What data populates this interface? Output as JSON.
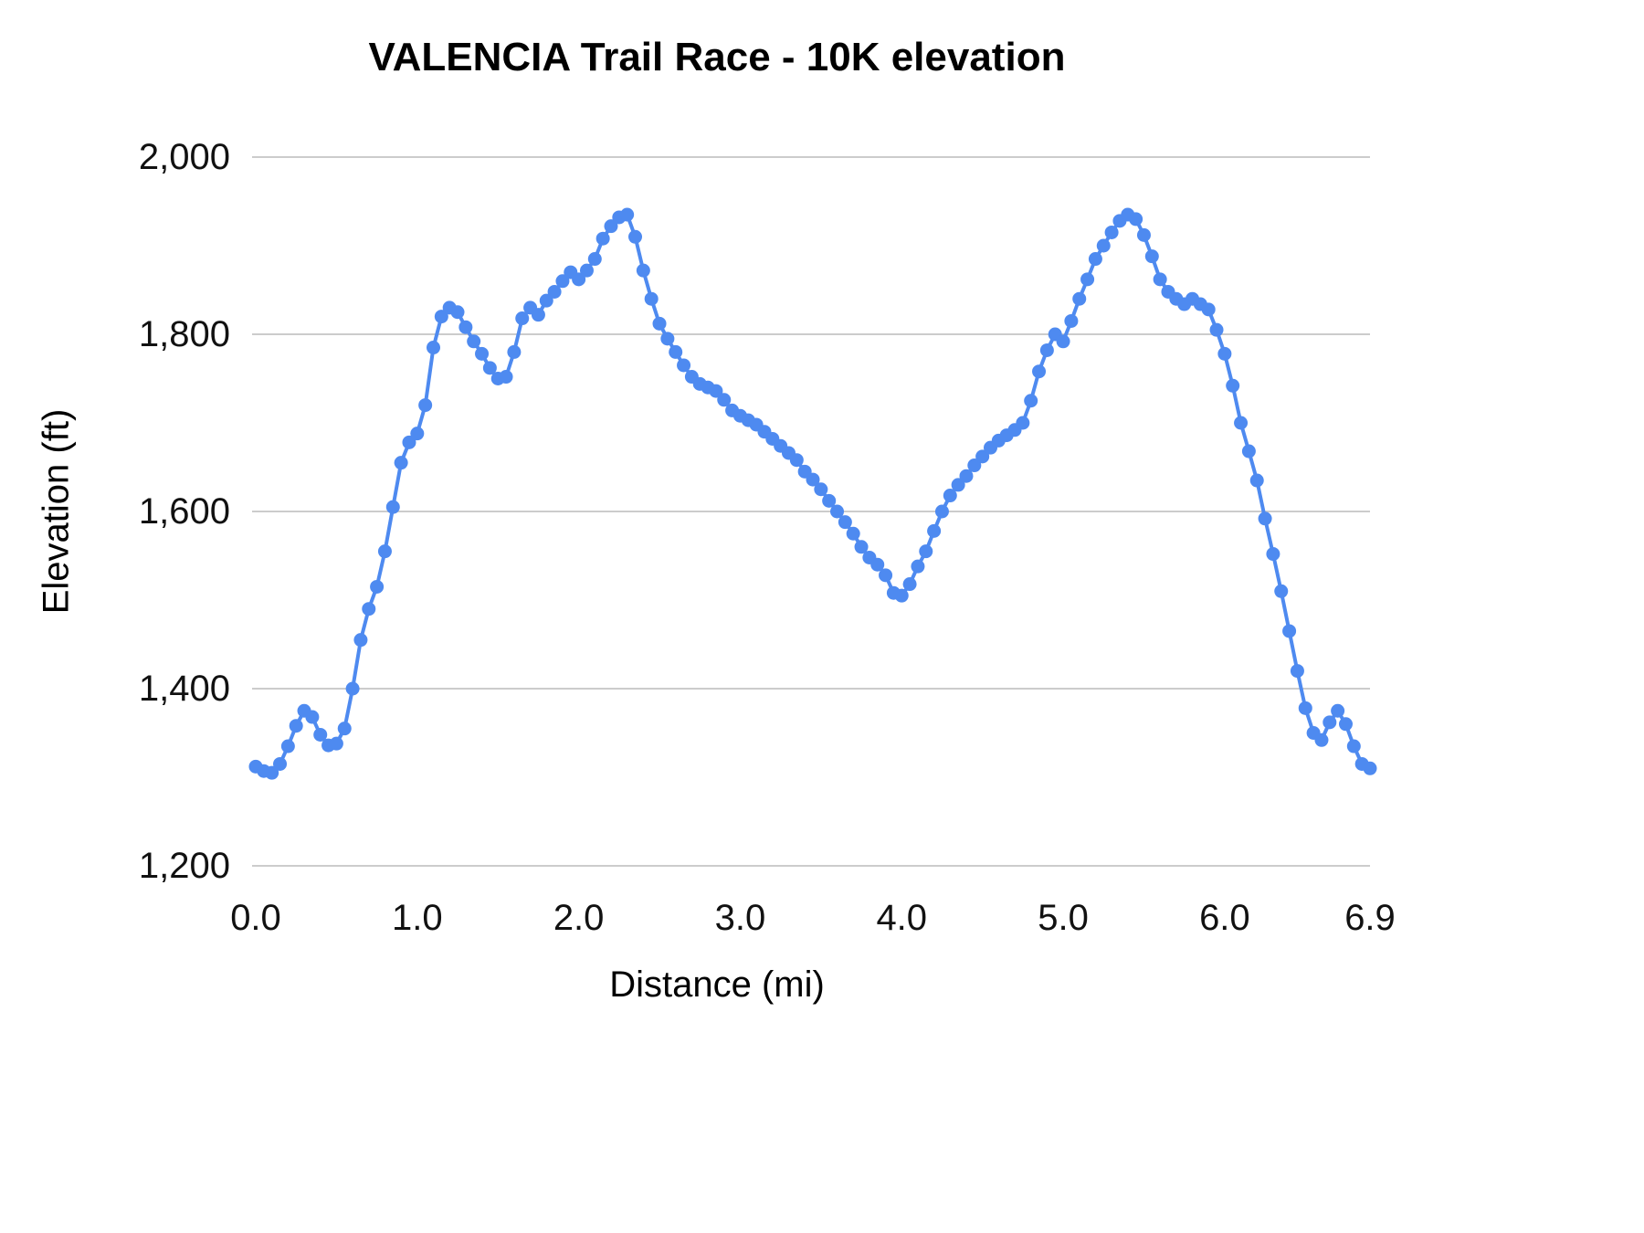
{
  "chart_data": {
    "type": "line",
    "title": "VALENCIA Trail Race - 10K elevation",
    "xlabel": "Distance (mi)",
    "ylabel": "Elevation (ft)",
    "xlim": [
      0,
      6.9
    ],
    "ylim": [
      1200,
      2000
    ],
    "grid": "horizontal",
    "legend": "none",
    "marker": "circle",
    "x_ticks": [
      "0.0",
      "1.0",
      "2.0",
      "3.0",
      "4.0",
      "5.0",
      "6.0",
      "6.9"
    ],
    "x_tick_values": [
      0,
      1,
      2,
      3,
      4,
      5,
      6,
      6.9
    ],
    "y_ticks": [
      "1,200",
      "1,400",
      "1,600",
      "1,800",
      "2,000"
    ],
    "y_tick_values": [
      1200,
      1400,
      1600,
      1800,
      2000
    ],
    "colors": {
      "series": "#4e8af0",
      "grid": "#cccccc",
      "tick_text": "#111111"
    },
    "series": [
      {
        "name": "elevation",
        "color": "#4e8af0",
        "x": [
          0,
          0.05,
          0.1,
          0.15,
          0.2,
          0.25,
          0.3,
          0.35,
          0.4,
          0.45,
          0.5,
          0.55,
          0.6,
          0.65,
          0.7,
          0.75,
          0.8,
          0.85,
          0.9,
          0.95,
          1,
          1.05,
          1.1,
          1.15,
          1.2,
          1.25,
          1.3,
          1.35,
          1.4,
          1.45,
          1.5,
          1.55,
          1.6,
          1.65,
          1.7,
          1.75,
          1.8,
          1.85,
          1.9,
          1.95,
          2,
          2.05,
          2.1,
          2.15,
          2.2,
          2.25,
          2.3,
          2.35,
          2.4,
          2.45,
          2.5,
          2.55,
          2.6,
          2.65,
          2.7,
          2.75,
          2.8,
          2.85,
          2.9,
          2.95,
          3,
          3.05,
          3.1,
          3.15,
          3.2,
          3.25,
          3.3,
          3.35,
          3.4,
          3.45,
          3.5,
          3.55,
          3.6,
          3.65,
          3.7,
          3.75,
          3.8,
          3.85,
          3.9,
          3.95,
          4,
          4.05,
          4.1,
          4.15,
          4.2,
          4.25,
          4.3,
          4.35,
          4.4,
          4.45,
          4.5,
          4.55,
          4.6,
          4.65,
          4.7,
          4.75,
          4.8,
          4.85,
          4.9,
          4.95,
          5,
          5.05,
          5.1,
          5.15,
          5.2,
          5.25,
          5.3,
          5.35,
          5.4,
          5.45,
          5.5,
          5.55,
          5.6,
          5.65,
          5.7,
          5.75,
          5.8,
          5.85,
          5.9,
          5.95,
          6,
          6.05,
          6.1,
          6.15,
          6.2,
          6.25,
          6.3,
          6.35,
          6.4,
          6.45,
          6.5,
          6.55,
          6.6,
          6.65,
          6.7,
          6.75,
          6.8,
          6.85,
          6.9
        ],
        "y": [
          1312,
          1307,
          1305,
          1315,
          1335,
          1358,
          1375,
          1368,
          1348,
          1336,
          1338,
          1355,
          1400,
          1455,
          1490,
          1515,
          1555,
          1605,
          1655,
          1678,
          1688,
          1720,
          1785,
          1820,
          1830,
          1825,
          1808,
          1792,
          1778,
          1762,
          1750,
          1752,
          1780,
          1818,
          1830,
          1822,
          1838,
          1848,
          1860,
          1870,
          1862,
          1872,
          1885,
          1908,
          1922,
          1932,
          1935,
          1910,
          1872,
          1840,
          1812,
          1795,
          1780,
          1765,
          1752,
          1744,
          1740,
          1736,
          1726,
          1714,
          1708,
          1703,
          1698,
          1690,
          1682,
          1674,
          1666,
          1658,
          1645,
          1636,
          1625,
          1612,
          1600,
          1588,
          1575,
          1560,
          1548,
          1540,
          1528,
          1508,
          1505,
          1518,
          1538,
          1555,
          1578,
          1600,
          1618,
          1630,
          1640,
          1652,
          1662,
          1672,
          1680,
          1686,
          1692,
          1700,
          1725,
          1758,
          1782,
          1800,
          1792,
          1815,
          1840,
          1862,
          1885,
          1900,
          1915,
          1928,
          1935,
          1930,
          1912,
          1888,
          1862,
          1848,
          1840,
          1834,
          1840,
          1834,
          1828,
          1805,
          1778,
          1742,
          1700,
          1668,
          1635,
          1592,
          1552,
          1510,
          1465,
          1420,
          1378,
          1350,
          1342,
          1362,
          1375,
          1360,
          1335,
          1315,
          1310
        ]
      }
    ]
  }
}
